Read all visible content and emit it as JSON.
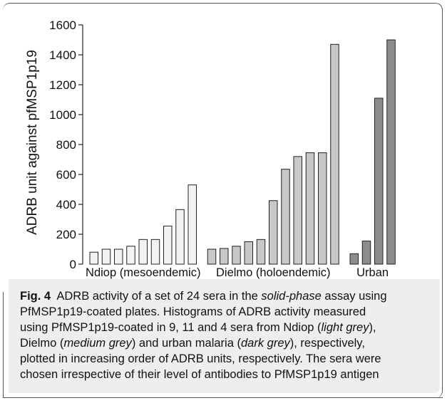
{
  "chart_data": {
    "type": "bar",
    "title": "",
    "ylabel": "ADRB unit against pfMSP1p19",
    "xlabel": "",
    "ylim": [
      0,
      1600
    ],
    "yticks": [
      0,
      200,
      400,
      600,
      800,
      1000,
      1200,
      1400,
      1600
    ],
    "grid": false,
    "legend": "none",
    "groups": [
      {
        "label": "Ndiop (mesoendemic)",
        "color": "#f2f2f2",
        "values": [
          80,
          100,
          100,
          120,
          165,
          165,
          255,
          365,
          530
        ]
      },
      {
        "label": "Dielmo (holoendemic)",
        "color": "#c8c8c8",
        "values": [
          100,
          105,
          120,
          150,
          165,
          425,
          635,
          720,
          745,
          745,
          1470
        ]
      },
      {
        "label": "Urban",
        "color": "#8c8c8c",
        "values": [
          70,
          155,
          1110,
          1500
        ]
      }
    ]
  },
  "caption": {
    "fig_label": "Fig. 4",
    "line1_a": "ADRB activity of a set of 24 sera in the ",
    "line1_em": "solid-phase",
    "line1_b": " assay using",
    "line2": "PfMSP1p19-coated plates. Histograms of ADRB activity measured",
    "line3_a": "using PfMSP1p19-coated in 9, 11 and 4 sera from Ndiop (",
    "line3_em": "light grey",
    "line3_b": "),",
    "line4_a": "Dielmo (",
    "line4_em1": "medium grey",
    "line4_b": ") and urban malaria (",
    "line4_em2": "dark grey",
    "line4_c": "), respectively,",
    "line5": "plotted in increasing order of ADRB units, respectively. The sera were",
    "line6": "chosen irrespective of their level of antibodies to PfMSP1p19 antigen"
  }
}
